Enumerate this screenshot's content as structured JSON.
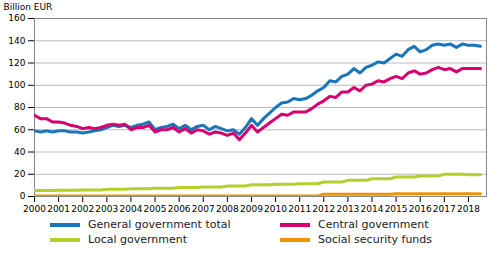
{
  "chart_data": {
    "type": "line",
    "y_label": "Billion EUR",
    "x": [
      2000,
      2000.25,
      2000.5,
      2000.75,
      2001,
      2001.25,
      2001.5,
      2001.75,
      2002,
      2002.25,
      2002.5,
      2002.75,
      2003,
      2003.25,
      2003.5,
      2003.75,
      2004,
      2004.25,
      2004.5,
      2004.75,
      2005,
      2005.25,
      2005.5,
      2005.75,
      2006,
      2006.25,
      2006.5,
      2006.75,
      2007,
      2007.25,
      2007.5,
      2007.75,
      2008,
      2008.25,
      2008.5,
      2008.75,
      2009,
      2009.25,
      2009.5,
      2009.75,
      2010,
      2010.25,
      2010.5,
      2010.75,
      2011,
      2011.25,
      2011.5,
      2011.75,
      2012,
      2012.25,
      2012.5,
      2012.75,
      2013,
      2013.25,
      2013.5,
      2013.75,
      2014,
      2014.25,
      2014.5,
      2014.75,
      2015,
      2015.25,
      2015.5,
      2015.75,
      2016,
      2016.25,
      2016.5,
      2016.75,
      2017,
      2017.25,
      2017.5,
      2017.75,
      2018,
      2018.25,
      2018.5
    ],
    "series": [
      {
        "name": "General government total",
        "color": "#1b75bb",
        "values": [
          59,
          58,
          59,
          58,
          59,
          59,
          58,
          58,
          57,
          58,
          59,
          60,
          62,
          64,
          63,
          64,
          62,
          64,
          65,
          67,
          60,
          62,
          63,
          65,
          61,
          64,
          60,
          63,
          64,
          60,
          63,
          61,
          59,
          60,
          56,
          62,
          70,
          64,
          70,
          75,
          80,
          84,
          85,
          88,
          87,
          88,
          91,
          95,
          98,
          104,
          103,
          108,
          110,
          115,
          111,
          116,
          118,
          121,
          120,
          124,
          128,
          126,
          132,
          135,
          130,
          132,
          136,
          137,
          136,
          137,
          134,
          137,
          136,
          136,
          135
        ]
      },
      {
        "name": "Central government",
        "color": "#d6006f",
        "values": [
          73,
          70,
          70,
          67,
          67,
          66,
          64,
          63,
          61,
          62,
          61,
          62,
          64,
          65,
          64,
          65,
          60,
          62,
          62,
          64,
          58,
          60,
          60,
          62,
          58,
          61,
          57,
          60,
          59,
          56,
          58,
          57,
          55,
          57,
          51,
          57,
          64,
          58,
          62,
          66,
          70,
          74,
          73,
          76,
          76,
          76,
          79,
          83,
          86,
          90,
          89,
          94,
          94,
          98,
          95,
          100,
          101,
          104,
          103,
          106,
          108,
          106,
          111,
          113,
          110,
          111,
          114,
          116,
          114,
          115,
          112,
          115,
          115,
          115,
          115
        ]
      },
      {
        "name": "Local government",
        "color": "#b5cf2d",
        "values": [
          5.5,
          5.5,
          5.5,
          5.5,
          5.6,
          5.6,
          5.6,
          5.6,
          5.8,
          5.8,
          5.8,
          5.8,
          6.5,
          6.5,
          6.5,
          6.5,
          7,
          7,
          7,
          7,
          7.5,
          7.5,
          7.5,
          7.5,
          8,
          8,
          8,
          8,
          8.5,
          8.5,
          8.5,
          8.5,
          9.5,
          9.5,
          9.5,
          9.5,
          10.5,
          10.5,
          10.5,
          10.5,
          11,
          11,
          11,
          11,
          11.5,
          11.5,
          11.5,
          11.5,
          13,
          13,
          13,
          13,
          14.5,
          14.5,
          14.5,
          14.5,
          16,
          16,
          16,
          16,
          17.5,
          17.5,
          17.5,
          17.5,
          18.5,
          18.5,
          18.5,
          18.5,
          20,
          20,
          20,
          20,
          19.5,
          19.5,
          19.5
        ]
      },
      {
        "name": "Social security funds",
        "color": "#f39200",
        "values": [
          0.5,
          0.5,
          0.5,
          0.5,
          0.5,
          0.5,
          0.5,
          0.5,
          0.5,
          0.5,
          0.5,
          0.5,
          0.5,
          0.5,
          0.5,
          0.5,
          0.5,
          0.5,
          0.5,
          0.5,
          0.5,
          0.5,
          0.5,
          0.5,
          0.5,
          0.5,
          0.5,
          0.5,
          0.5,
          0.5,
          0.5,
          0.5,
          0.5,
          0.5,
          0.5,
          0.5,
          0.5,
          0.5,
          0.5,
          0.5,
          0.5,
          0.5,
          0.5,
          0.5,
          0.5,
          0.5,
          0.5,
          0.5,
          2,
          2,
          2,
          2,
          2,
          2,
          2,
          2,
          2,
          2,
          2,
          2,
          2.5,
          2.5,
          2.5,
          2.5,
          2.5,
          2.5,
          2.5,
          2.5,
          2.5,
          2.5,
          2.5,
          2.5,
          2.5,
          2.5,
          2.5
        ]
      }
    ],
    "xlim": [
      2000,
      2018.75
    ],
    "xticks": [
      2000,
      2001,
      2002,
      2003,
      2004,
      2005,
      2006,
      2007,
      2008,
      2009,
      2010,
      2011,
      2012,
      2013,
      2014,
      2015,
      2016,
      2017,
      2018
    ],
    "ylim": [
      0,
      160
    ],
    "yticks": [
      0,
      20,
      40,
      60,
      80,
      100,
      120,
      140,
      160
    ],
    "grid": true,
    "legend": "bottom"
  }
}
